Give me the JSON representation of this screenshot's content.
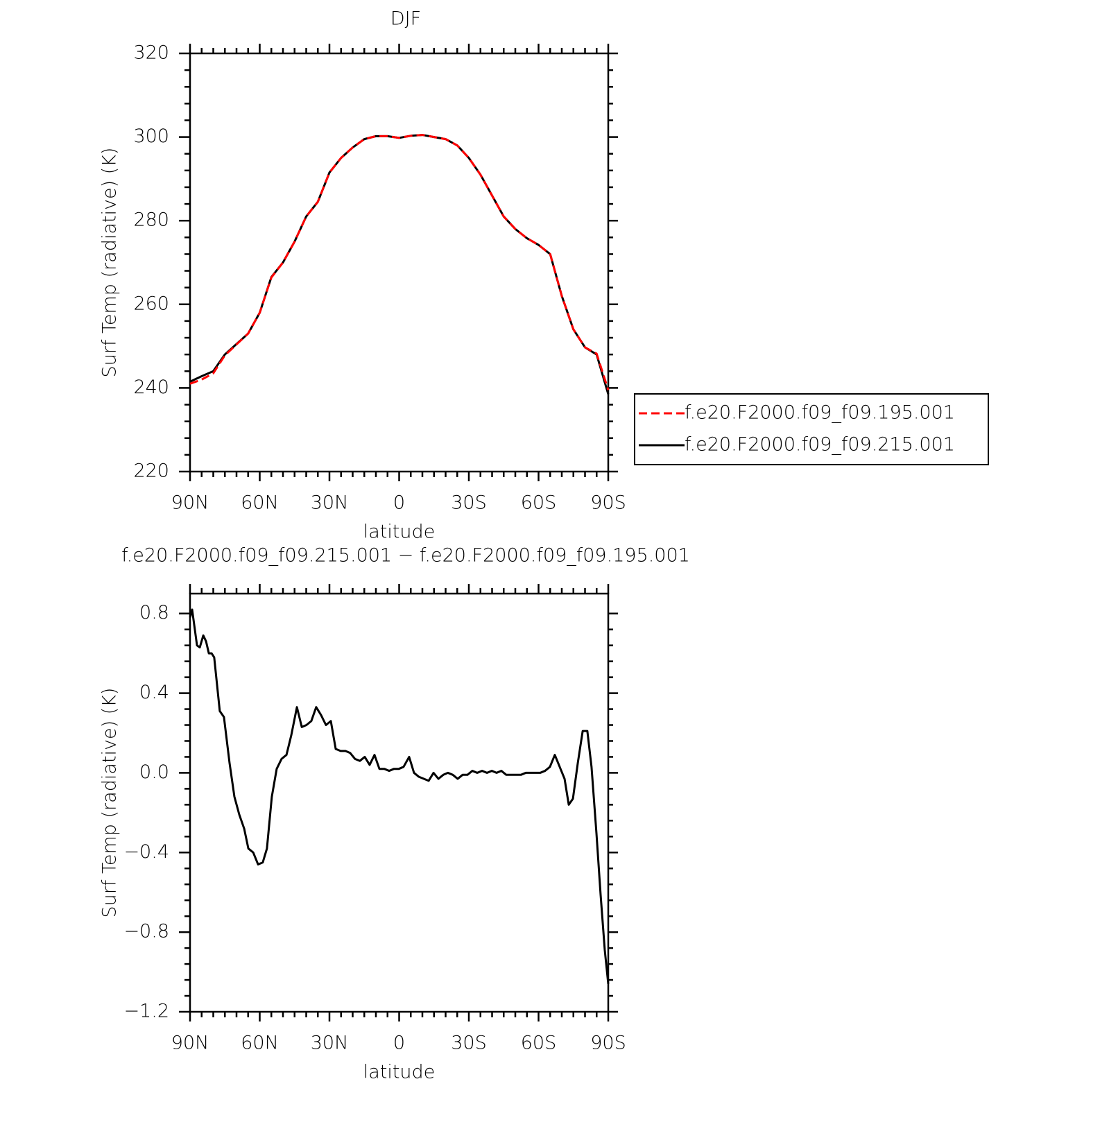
{
  "chart_data": [
    {
      "type": "line",
      "title": "DJF",
      "xlabel": "latitude",
      "ylabel": "Surf Temp (radiative) (K)",
      "xlim": [
        90,
        -90
      ],
      "ylim": [
        220,
        320
      ],
      "xticks": [
        {
          "value": 90,
          "label": "90N"
        },
        {
          "value": 60,
          "label": "60N"
        },
        {
          "value": 30,
          "label": "30N"
        },
        0,
        {
          "value": -30,
          "label": "30S"
        },
        {
          "value": -60,
          "label": "60S"
        },
        {
          "value": -90,
          "label": "90S"
        }
      ],
      "yticks": [
        220,
        240,
        260,
        280,
        300,
        320
      ],
      "legend": "outside-right",
      "x": [
        90,
        85,
        80,
        75,
        70,
        65,
        60,
        55,
        50,
        45,
        40,
        35,
        30,
        25,
        20,
        15,
        10,
        5,
        0,
        -5,
        -10,
        -15,
        -20,
        -25,
        -30,
        -35,
        -40,
        -45,
        -50,
        -55,
        -60,
        -65,
        -70,
        -75,
        -80,
        -85,
        -90
      ],
      "series": [
        {
          "name": "f.e20.F2000.f09_f09.195.001",
          "color": "#ff0000",
          "linestyle": "dashed",
          "values": [
            241,
            242,
            243.5,
            247.8,
            250.4,
            253,
            258,
            266.4,
            270,
            275,
            281,
            284.5,
            291.5,
            295,
            297.5,
            299.5,
            300.2,
            300.2,
            299.8,
            300.3,
            300.5,
            300,
            299.5,
            298,
            295,
            291,
            286,
            281,
            278,
            275.8,
            274.2,
            272,
            262,
            254,
            249.7,
            248.2,
            239.5
          ]
        },
        {
          "name": "f.e20.F2000.f09_f09.215.001",
          "color": "#000000",
          "linestyle": "solid",
          "values": [
            241.5,
            242.8,
            244,
            248,
            250.5,
            253,
            258,
            266.5,
            270,
            275,
            281,
            284.5,
            291.5,
            295,
            297.5,
            299.5,
            300.2,
            300.2,
            299.8,
            300.3,
            300.5,
            300,
            299.5,
            298,
            295,
            291,
            286,
            281,
            278,
            275.8,
            274.2,
            272,
            262,
            254,
            249.7,
            248,
            238.5
          ]
        }
      ]
    },
    {
      "type": "line",
      "title": "f.e20.F2000.f09_f09.215.001 − f.e20.F2000.f09_f09.195.001",
      "xlabel": "latitude",
      "ylabel": "Surf Temp (radiative) (K)",
      "xlim": [
        90,
        -90
      ],
      "ylim": [
        -1.2,
        0.9
      ],
      "xticks": [
        {
          "value": 90,
          "label": "90N"
        },
        {
          "value": 60,
          "label": "60N"
        },
        {
          "value": 30,
          "label": "30N"
        },
        0,
        {
          "value": -30,
          "label": "30S"
        },
        {
          "value": -60,
          "label": "60S"
        },
        {
          "value": -90,
          "label": "90S"
        }
      ],
      "yticks": [
        {
          "value": -1.2,
          "label": "−1.2"
        },
        {
          "value": -0.8,
          "label": "−0.8"
        },
        {
          "value": -0.4,
          "label": "−0.4"
        },
        {
          "value": 0,
          "label": "0.0"
        },
        0.4,
        0.8
      ],
      "x": [
        90,
        89.1,
        87,
        85.8,
        84.3,
        83.1,
        81.9,
        80.7,
        79.6,
        77.2,
        75.4,
        73,
        70.9,
        68.8,
        66.7,
        64.9,
        62.8,
        60.7,
        58.7,
        56.9,
        54.8,
        52.7,
        50.6,
        48.5,
        46.4,
        44,
        41.9,
        39.9,
        37.8,
        35.7,
        33.6,
        31.5,
        29.4,
        27.3,
        25.2,
        23.1,
        21.1,
        19,
        16.9,
        14.8,
        12.7,
        10.6,
        8.5,
        6.4,
        4.3,
        2.2,
        0.1,
        -1.9,
        -4.3,
        -6.4,
        -8.5,
        -10.6,
        -12.7,
        -14.8,
        -16.9,
        -19,
        -21,
        -23.1,
        -25.2,
        -27.3,
        -29.4,
        -31.5,
        -33.6,
        -35.7,
        -37.8,
        -39.9,
        -41.9,
        -44,
        -46.1,
        -48.2,
        -50.3,
        -52.4,
        -54.5,
        -56.6,
        -58.7,
        -60.7,
        -62.8,
        -64.9,
        -67,
        -69.1,
        -71.2,
        -73,
        -74.8,
        -76.9,
        -79,
        -81,
        -82.8,
        -84.9,
        -86.7,
        -88.5,
        -90
      ],
      "series": [
        {
          "color": "#000000",
          "linestyle": "solid",
          "values": [
            0.78,
            0.82,
            0.64,
            0.63,
            0.69,
            0.66,
            0.6,
            0.6,
            0.58,
            0.31,
            0.28,
            0.05,
            -0.12,
            -0.21,
            -0.28,
            -0.38,
            -0.4,
            -0.46,
            -0.45,
            -0.38,
            -0.12,
            0.02,
            0.07,
            0.09,
            0.19,
            0.33,
            0.23,
            0.24,
            0.26,
            0.33,
            0.29,
            0.24,
            0.26,
            0.12,
            0.11,
            0.11,
            0.1,
            0.07,
            0.06,
            0.08,
            0.04,
            0.09,
            0.02,
            0.02,
            0.01,
            0.02,
            0.02,
            0.03,
            0.08,
            0,
            -0.02,
            -0.03,
            -0.04,
            0,
            -0.03,
            -0.01,
            0,
            -0.01,
            -0.03,
            -0.01,
            -0.01,
            0.01,
            0,
            0.01,
            0,
            0.01,
            0,
            0.01,
            -0.01,
            -0.01,
            -0.01,
            -0.01,
            0,
            0,
            0,
            0,
            0.01,
            0.03,
            0.09,
            0.03,
            -0.03,
            -0.16,
            -0.13,
            0.05,
            0.21,
            0.21,
            0.03,
            -0.3,
            -0.61,
            -0.89,
            -1.06
          ]
        }
      ]
    }
  ]
}
